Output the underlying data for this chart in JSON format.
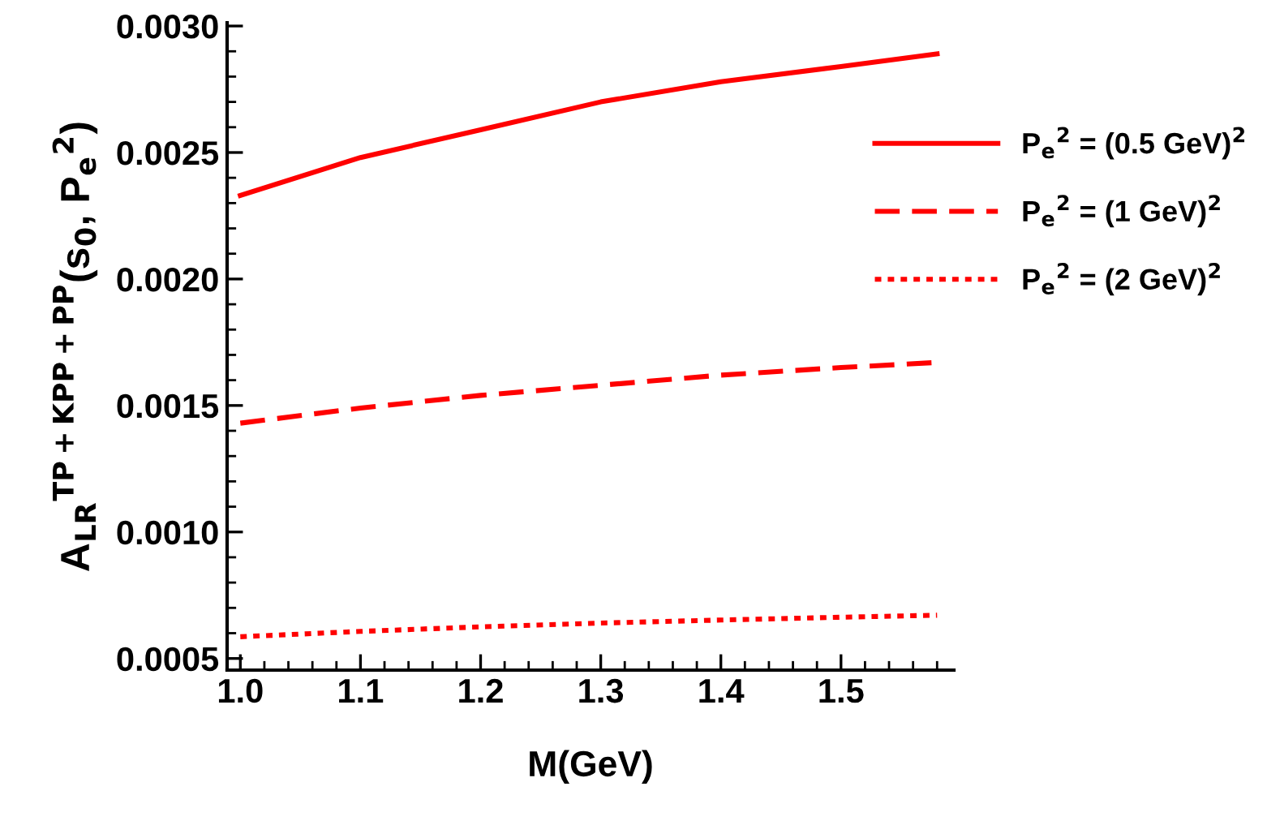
{
  "chart_data": {
    "type": "line",
    "xlabel": "M(GeV)",
    "ylabel": "A$_{LR}$$^{TP+KPP+PP}$(s$_{0}$, P$_{e}$$^{2}$)",
    "x": [
      1.0,
      1.1,
      1.2,
      1.3,
      1.4,
      1.5,
      1.58
    ],
    "series": [
      {
        "name": "P$_{e}$$^{2}$ = (0.5 GeV)$^{2}$",
        "color": "#ff0000",
        "line_style": "solid",
        "values": [
          0.00233,
          0.00248,
          0.00259,
          0.0027,
          0.00278,
          0.00284,
          0.00289
        ]
      },
      {
        "name": "P$_{e}$$^{2}$ = (1 GeV)$^{2}$",
        "color": "#ff0000",
        "line_style": "dashed",
        "values": [
          0.00143,
          0.00149,
          0.00154,
          0.00158,
          0.00162,
          0.00165,
          0.00167
        ]
      },
      {
        "name": "P$_{e}$$^{2}$ = (2 GeV)$^{2}$",
        "color": "#ff0000",
        "line_style": "dotted",
        "values": [
          0.000586,
          0.000607,
          0.000625,
          0.00064,
          0.000652,
          0.000663,
          0.000671
        ]
      }
    ],
    "xlim": [
      0.989,
      1.594
    ],
    "ylim": [
      0.000454,
      0.003013
    ],
    "xticks": [
      {
        "value": 1.0,
        "label": "1.0"
      },
      {
        "value": 1.1,
        "label": "1.1"
      },
      {
        "value": 1.2,
        "label": "1.2"
      },
      {
        "value": 1.3,
        "label": "1.3"
      },
      {
        "value": 1.4,
        "label": "1.4"
      },
      {
        "value": 1.5,
        "label": "1.5"
      }
    ],
    "yticks": [
      {
        "value": 0.0005,
        "label": "0.0005"
      },
      {
        "value": 0.001,
        "label": "0.0010"
      },
      {
        "value": 0.0015,
        "label": "0.0015"
      },
      {
        "value": 0.002,
        "label": "0.0020"
      },
      {
        "value": 0.0025,
        "label": "0.0025"
      },
      {
        "value": 0.003,
        "label": "0.0030"
      }
    ],
    "grid": false,
    "legend": "top right"
  }
}
